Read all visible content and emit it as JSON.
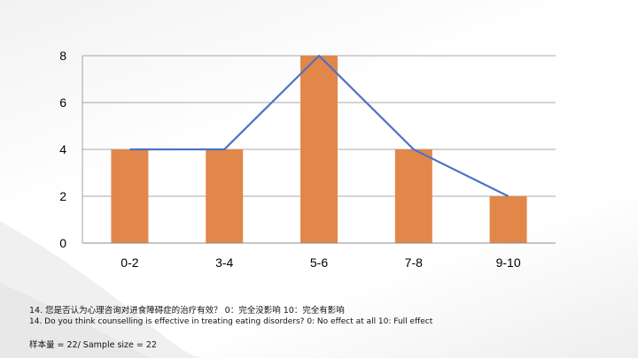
{
  "chart_data": {
    "type": "bar",
    "categories": [
      "0-2",
      "3-4",
      "5-6",
      "7-8",
      "9-10"
    ],
    "values": [
      4,
      4,
      8,
      4,
      2
    ],
    "overlay_line": {
      "type": "line",
      "values": [
        4,
        4,
        8,
        4,
        2
      ]
    },
    "ylim": [
      0,
      8
    ],
    "yticks": [
      0,
      2,
      4,
      6,
      8
    ],
    "grid": true,
    "colors": {
      "bar": "#E2874A",
      "line": "#4A72C4",
      "grid": "#8c8c8c"
    },
    "title": "",
    "xlabel": "",
    "ylabel": ""
  },
  "captions": {
    "question_zh": "14. 您是否认为心理咨询对进食障碍症的治疗有效？ 0：完全没影响 10：完全有影响",
    "question_en": "14. Do you think counselling is effective in treating eating disorders? 0: No effect at all 10: Full effect",
    "sample_size": "样本量 = 22/ Sample size = 22"
  }
}
